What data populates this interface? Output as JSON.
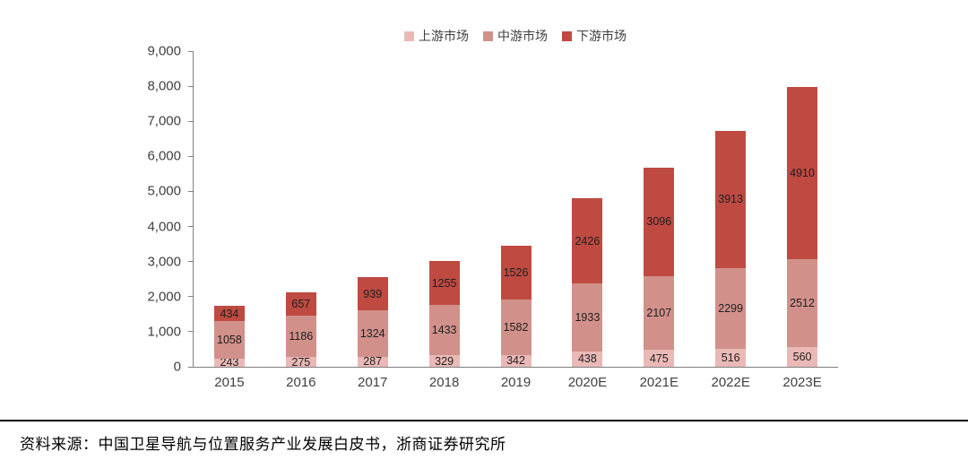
{
  "chart_data": {
    "type": "bar",
    "stacked": true,
    "title": "",
    "categories": [
      "2015",
      "2016",
      "2017",
      "2018",
      "2019",
      "2020E",
      "2021E",
      "2022E",
      "2023E"
    ],
    "series": [
      {
        "name": "上游市场",
        "color": "#eab9b6",
        "values": [
          243,
          275,
          287,
          329,
          342,
          438,
          475,
          516,
          560
        ]
      },
      {
        "name": "中游市场",
        "color": "#d2908a",
        "values": [
          1058,
          1186,
          1324,
          1433,
          1582,
          1933,
          2107,
          2299,
          2512
        ]
      },
      {
        "name": "下游市场",
        "color": "#bf4a42",
        "values": [
          434,
          657,
          939,
          1255,
          1526,
          2426,
          3096,
          3913,
          4910
        ]
      }
    ],
    "xlabel": "",
    "ylabel": "",
    "ylim": [
      0,
      9000
    ],
    "ytick_step": 1000,
    "yticks": [
      "0",
      "1,000",
      "2,000",
      "3,000",
      "4,000",
      "5,000",
      "6,000",
      "7,000",
      "8,000",
      "9,000"
    ],
    "legend_position": "top",
    "grid": false,
    "axis_color": "#7f7f7f",
    "label_color": "#404040"
  },
  "footer": {
    "source_text": "资料来源：中国卫星导航与位置服务产业发展白皮书，浙商证券研究所"
  }
}
